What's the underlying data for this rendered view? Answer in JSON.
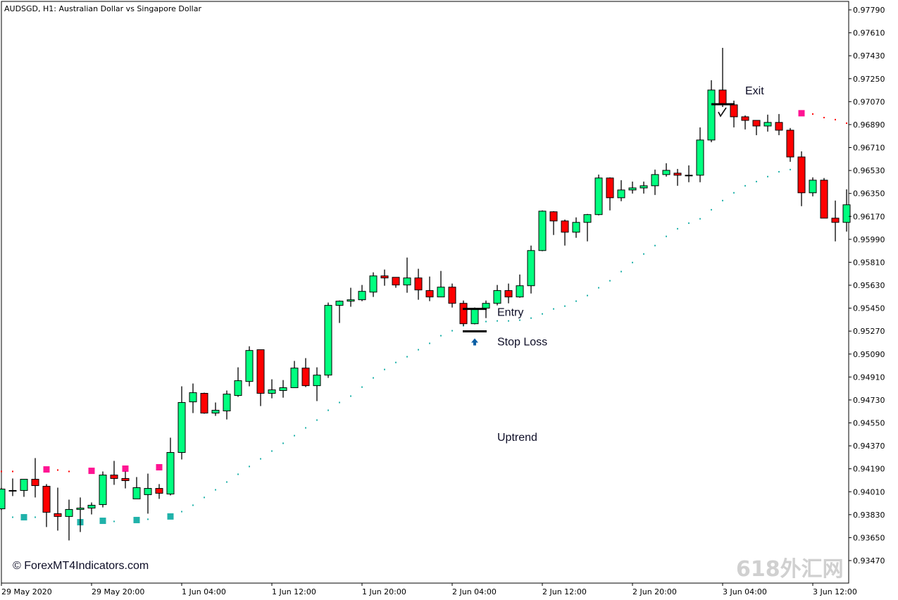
{
  "header": {
    "title": "AUDSGD, H1:  Australian Dollar vs Singapore Dollar"
  },
  "copyright": "© ForexMT4Indicators.com",
  "watermark": "618外汇网",
  "annotations": {
    "entry": "Entry",
    "stop_loss": "Stop Loss",
    "exit": "Exit",
    "trend": "Uptrend"
  },
  "colors": {
    "bull": "#00ff7f",
    "bear": "#ff0000",
    "support": "#20b2aa",
    "resistance": "#ff1493",
    "resistance_dot": "#ff0000",
    "arrow": "#0b5fa5"
  },
  "chart_data": {
    "type": "candlestick",
    "symbol": "AUDSGD",
    "timeframe": "H1",
    "ylim": [
      0.9338,
      0.9784
    ],
    "y_ticks": [
      "0.97790",
      "0.97610",
      "0.97430",
      "0.97250",
      "0.97070",
      "0.96890",
      "0.96710",
      "0.96530",
      "0.96350",
      "0.96170",
      "0.95990",
      "0.95810",
      "0.95630",
      "0.95450",
      "0.95270",
      "0.95090",
      "0.94910",
      "0.94730",
      "0.94550",
      "0.94370",
      "0.94190",
      "0.94010",
      "0.93830",
      "0.93650",
      "0.93470"
    ],
    "x_ticks": [
      {
        "bar": 0,
        "label": "29 May 2020"
      },
      {
        "bar": 8,
        "label": "29 May 20:00"
      },
      {
        "bar": 16,
        "label": "1 Jun 04:00"
      },
      {
        "bar": 24,
        "label": "1 Jun 12:00"
      },
      {
        "bar": 32,
        "label": "1 Jun 20:00"
      },
      {
        "bar": 40,
        "label": "2 Jun 04:00"
      },
      {
        "bar": 48,
        "label": "2 Jun 12:00"
      },
      {
        "bar": 56,
        "label": "2 Jun 20:00"
      },
      {
        "bar": 64,
        "label": "3 Jun 04:00"
      },
      {
        "bar": 72,
        "label": "3 Jun 12:00"
      }
    ],
    "ohlc": [
      [
        0.93876,
        0.94042,
        0.93865,
        0.94031
      ],
      [
        0.9402,
        0.94114,
        0.93976,
        0.9402
      ],
      [
        0.9402,
        0.94108,
        0.9397,
        0.94108
      ],
      [
        0.94108,
        0.94274,
        0.93965,
        0.94058
      ],
      [
        0.94053,
        0.9407,
        0.93733,
        0.93849
      ],
      [
        0.93838,
        0.94042,
        0.93705,
        0.93816
      ],
      [
        0.93816,
        0.93948,
        0.93628,
        0.93871
      ],
      [
        0.93871,
        0.93965,
        0.93694,
        0.93882
      ],
      [
        0.93882,
        0.93926,
        0.93832,
        0.93904
      ],
      [
        0.93909,
        0.94169,
        0.93887,
        0.94141
      ],
      [
        0.94141,
        0.94252,
        0.94064,
        0.94114
      ],
      [
        0.94114,
        0.94169,
        0.94036,
        0.94097
      ],
      [
        0.93954,
        0.94125,
        0.93954,
        0.94042
      ],
      [
        0.93987,
        0.94152,
        0.93838,
        0.94036
      ],
      [
        0.94036,
        0.9407,
        0.93954,
        0.93998
      ],
      [
        0.93992,
        0.94434,
        0.93981,
        0.94318
      ],
      [
        0.94318,
        0.94837,
        0.94263,
        0.9471
      ],
      [
        0.94715,
        0.94859,
        0.94627,
        0.94787
      ],
      [
        0.94782,
        0.94787,
        0.94622,
        0.94627
      ],
      [
        0.94627,
        0.9471,
        0.94605,
        0.94649
      ],
      [
        0.94644,
        0.94804,
        0.94577,
        0.94776
      ],
      [
        0.94765,
        0.94986,
        0.94754,
        0.94881
      ],
      [
        0.94875,
        0.95151,
        0.94837,
        0.95118
      ],
      [
        0.95124,
        0.95124,
        0.94682,
        0.94782
      ],
      [
        0.94782,
        0.94892,
        0.94743,
        0.94809
      ],
      [
        0.94804,
        0.94886,
        0.94748,
        0.94826
      ],
      [
        0.94826,
        0.95036,
        0.94826,
        0.9498
      ],
      [
        0.9498,
        0.95058,
        0.94831,
        0.94842
      ],
      [
        0.94842,
        0.94986,
        0.94721,
        0.94925
      ],
      [
        0.94925,
        0.95494,
        0.94903,
        0.95472
      ],
      [
        0.95472,
        0.9551,
        0.95334,
        0.95505
      ],
      [
        0.95505,
        0.9561,
        0.95461,
        0.95516
      ],
      [
        0.95516,
        0.95632,
        0.95505,
        0.95582
      ],
      [
        0.95576,
        0.95731,
        0.95538,
        0.95703
      ],
      [
        0.95703,
        0.95753,
        0.95626,
        0.95687
      ],
      [
        0.95692,
        0.95692,
        0.9561,
        0.95632
      ],
      [
        0.95632,
        0.95847,
        0.95571,
        0.95687
      ],
      [
        0.95687,
        0.95759,
        0.95516,
        0.95593
      ],
      [
        0.95588,
        0.95698,
        0.95505,
        0.95538
      ],
      [
        0.95538,
        0.95742,
        0.95538,
        0.95615
      ],
      [
        0.95615,
        0.95643,
        0.95455,
        0.95488
      ],
      [
        0.95488,
        0.9551,
        0.95312,
        0.95328
      ],
      [
        0.95328,
        0.95455,
        0.95323,
        0.95444
      ],
      [
        0.9545,
        0.9551,
        0.95372,
        0.95488
      ],
      [
        0.95488,
        0.95632,
        0.95472,
        0.95588
      ],
      [
        0.95588,
        0.95643,
        0.95488,
        0.95538
      ],
      [
        0.95538,
        0.95714,
        0.95532,
        0.95626
      ],
      [
        0.95626,
        0.95941,
        0.95565,
        0.95902
      ],
      [
        0.95902,
        0.96217,
        0.95897,
        0.96211
      ],
      [
        0.96206,
        0.96211,
        0.96024,
        0.96134
      ],
      [
        0.96134,
        0.96145,
        0.95941,
        0.96046
      ],
      [
        0.96046,
        0.96162,
        0.96002,
        0.96123
      ],
      [
        0.96123,
        0.96189,
        0.95974,
        0.96184
      ],
      [
        0.96184,
        0.96498,
        0.96178,
        0.96471
      ],
      [
        0.96471,
        0.96476,
        0.96217,
        0.96316
      ],
      [
        0.96316,
        0.96454,
        0.96289,
        0.96377
      ],
      [
        0.96377,
        0.96443,
        0.96349,
        0.96393
      ],
      [
        0.96393,
        0.96443,
        0.96349,
        0.9641
      ],
      [
        0.9641,
        0.96537,
        0.96338,
        0.96498
      ],
      [
        0.96498,
        0.96587,
        0.96482,
        0.96531
      ],
      [
        0.96509,
        0.96542,
        0.9641,
        0.96493
      ],
      [
        0.96493,
        0.9657,
        0.96438,
        0.96493
      ],
      [
        0.96493,
        0.96868,
        0.96438,
        0.96769
      ],
      [
        0.96769,
        0.97238,
        0.96752,
        0.97161
      ],
      [
        0.97161,
        0.97492,
        0.97028,
        0.9705
      ],
      [
        0.97045,
        0.97078,
        0.96868,
        0.96951
      ],
      [
        0.96951,
        0.96962,
        0.96852,
        0.96923
      ],
      [
        0.96923,
        0.96923,
        0.96807,
        0.96879
      ],
      [
        0.96879,
        0.96968,
        0.96835,
        0.96907
      ],
      [
        0.96907,
        0.96973,
        0.96807,
        0.96846
      ],
      [
        0.96846,
        0.96863,
        0.96598,
        0.96636
      ],
      [
        0.96636,
        0.9668,
        0.9625,
        0.96355
      ],
      [
        0.96355,
        0.96476,
        0.96327,
        0.96454
      ],
      [
        0.96454,
        0.96471,
        0.96156,
        0.96156
      ],
      [
        0.96156,
        0.96294,
        0.95974,
        0.96123
      ],
      [
        0.96123,
        0.96382,
        0.96051,
        0.96261
      ]
    ],
    "support_line": [
      [
        1,
        0.9381,
        "dot"
      ],
      [
        2,
        0.9381,
        "square"
      ],
      [
        3,
        0.9381,
        "dot"
      ],
      [
        7,
        0.93771,
        "square"
      ],
      [
        9,
        0.93782,
        "square"
      ],
      [
        10,
        0.93777,
        "dot"
      ],
      [
        12,
        0.93788,
        "square"
      ],
      [
        13,
        0.93794,
        "dot"
      ],
      [
        15,
        0.93816,
        "square"
      ],
      [
        16,
        0.93854,
        "dot"
      ],
      [
        17,
        0.93904,
        "dot"
      ],
      [
        18,
        0.93965,
        "dot"
      ],
      [
        19,
        0.94025,
        "dot"
      ],
      [
        20,
        0.94086,
        "dot"
      ],
      [
        21,
        0.94147,
        "dot"
      ],
      [
        22,
        0.94208,
        "dot"
      ],
      [
        23,
        0.94268,
        "dot"
      ],
      [
        24,
        0.94329,
        "dot"
      ],
      [
        25,
        0.9439,
        "dot"
      ],
      [
        26,
        0.9445,
        "dot"
      ],
      [
        27,
        0.94511,
        "dot"
      ],
      [
        28,
        0.94572,
        "dot"
      ],
      [
        29,
        0.94649,
        "dot"
      ],
      [
        30,
        0.9471,
        "dot"
      ],
      [
        31,
        0.9476,
        "dot"
      ],
      [
        32,
        0.94831,
        "dot"
      ],
      [
        33,
        0.94903,
        "dot"
      ],
      [
        34,
        0.94969,
        "dot"
      ],
      [
        35,
        0.95024,
        "dot"
      ],
      [
        36,
        0.95069,
        "dot"
      ],
      [
        37,
        0.95124,
        "dot"
      ],
      [
        38,
        0.95174,
        "dot"
      ],
      [
        39,
        0.95234,
        "dot"
      ],
      [
        40,
        0.95273,
        "dot"
      ],
      [
        41,
        0.95312,
        "dot"
      ],
      [
        42,
        0.95345,
        "dot"
      ],
      [
        43,
        0.95345,
        "dot"
      ],
      [
        44,
        0.9535,
        "dot"
      ],
      [
        45,
        0.9535,
        "dot"
      ],
      [
        46,
        0.95356,
        "dot"
      ],
      [
        47,
        0.95372,
        "dot"
      ],
      [
        48,
        0.95405,
        "dot"
      ],
      [
        49,
        0.95444,
        "dot"
      ],
      [
        50,
        0.95466,
        "dot"
      ],
      [
        51,
        0.95505,
        "dot"
      ],
      [
        52,
        0.95549,
        "dot"
      ],
      [
        53,
        0.9561,
        "dot"
      ],
      [
        54,
        0.95665,
        "dot"
      ],
      [
        55,
        0.95737,
        "dot"
      ],
      [
        56,
        0.95808,
        "dot"
      ],
      [
        57,
        0.95875,
        "dot"
      ],
      [
        58,
        0.95941,
        "dot"
      ],
      [
        59,
        0.96013,
        "dot"
      ],
      [
        60,
        0.96073,
        "dot"
      ],
      [
        61,
        0.96117,
        "dot"
      ],
      [
        62,
        0.96151,
        "dot"
      ],
      [
        63,
        0.96222,
        "dot"
      ],
      [
        64,
        0.96294,
        "dot"
      ],
      [
        65,
        0.96355,
        "dot"
      ],
      [
        66,
        0.9641,
        "dot"
      ],
      [
        67,
        0.96443,
        "dot"
      ],
      [
        68,
        0.96482,
        "dot"
      ],
      [
        69,
        0.9652,
        "dot"
      ],
      [
        70,
        0.96537,
        "dot"
      ]
    ],
    "resistance_line": [
      [
        0,
        0.94169,
        "dot"
      ],
      [
        1,
        0.94169,
        "dot"
      ],
      [
        4,
        0.94185,
        "square"
      ],
      [
        5,
        0.9418,
        "dot"
      ],
      [
        6,
        0.94169,
        "dot"
      ],
      [
        8,
        0.94174,
        "square"
      ],
      [
        11,
        0.94191,
        "square"
      ],
      [
        14,
        0.94202,
        "square"
      ],
      [
        71,
        0.96979,
        "square"
      ],
      [
        72,
        0.96973,
        "dot"
      ],
      [
        73,
        0.96945,
        "dot"
      ],
      [
        74,
        0.96929,
        "dot"
      ],
      [
        75,
        0.96901,
        "dot"
      ]
    ],
    "trade": {
      "entry_bar": 42,
      "entry_price": 0.95444,
      "stop_bar": 42,
      "stop_price": 0.95268,
      "buy_arrow_bar": 42,
      "exit_bar": 64,
      "exit_price": 0.9705
    }
  }
}
